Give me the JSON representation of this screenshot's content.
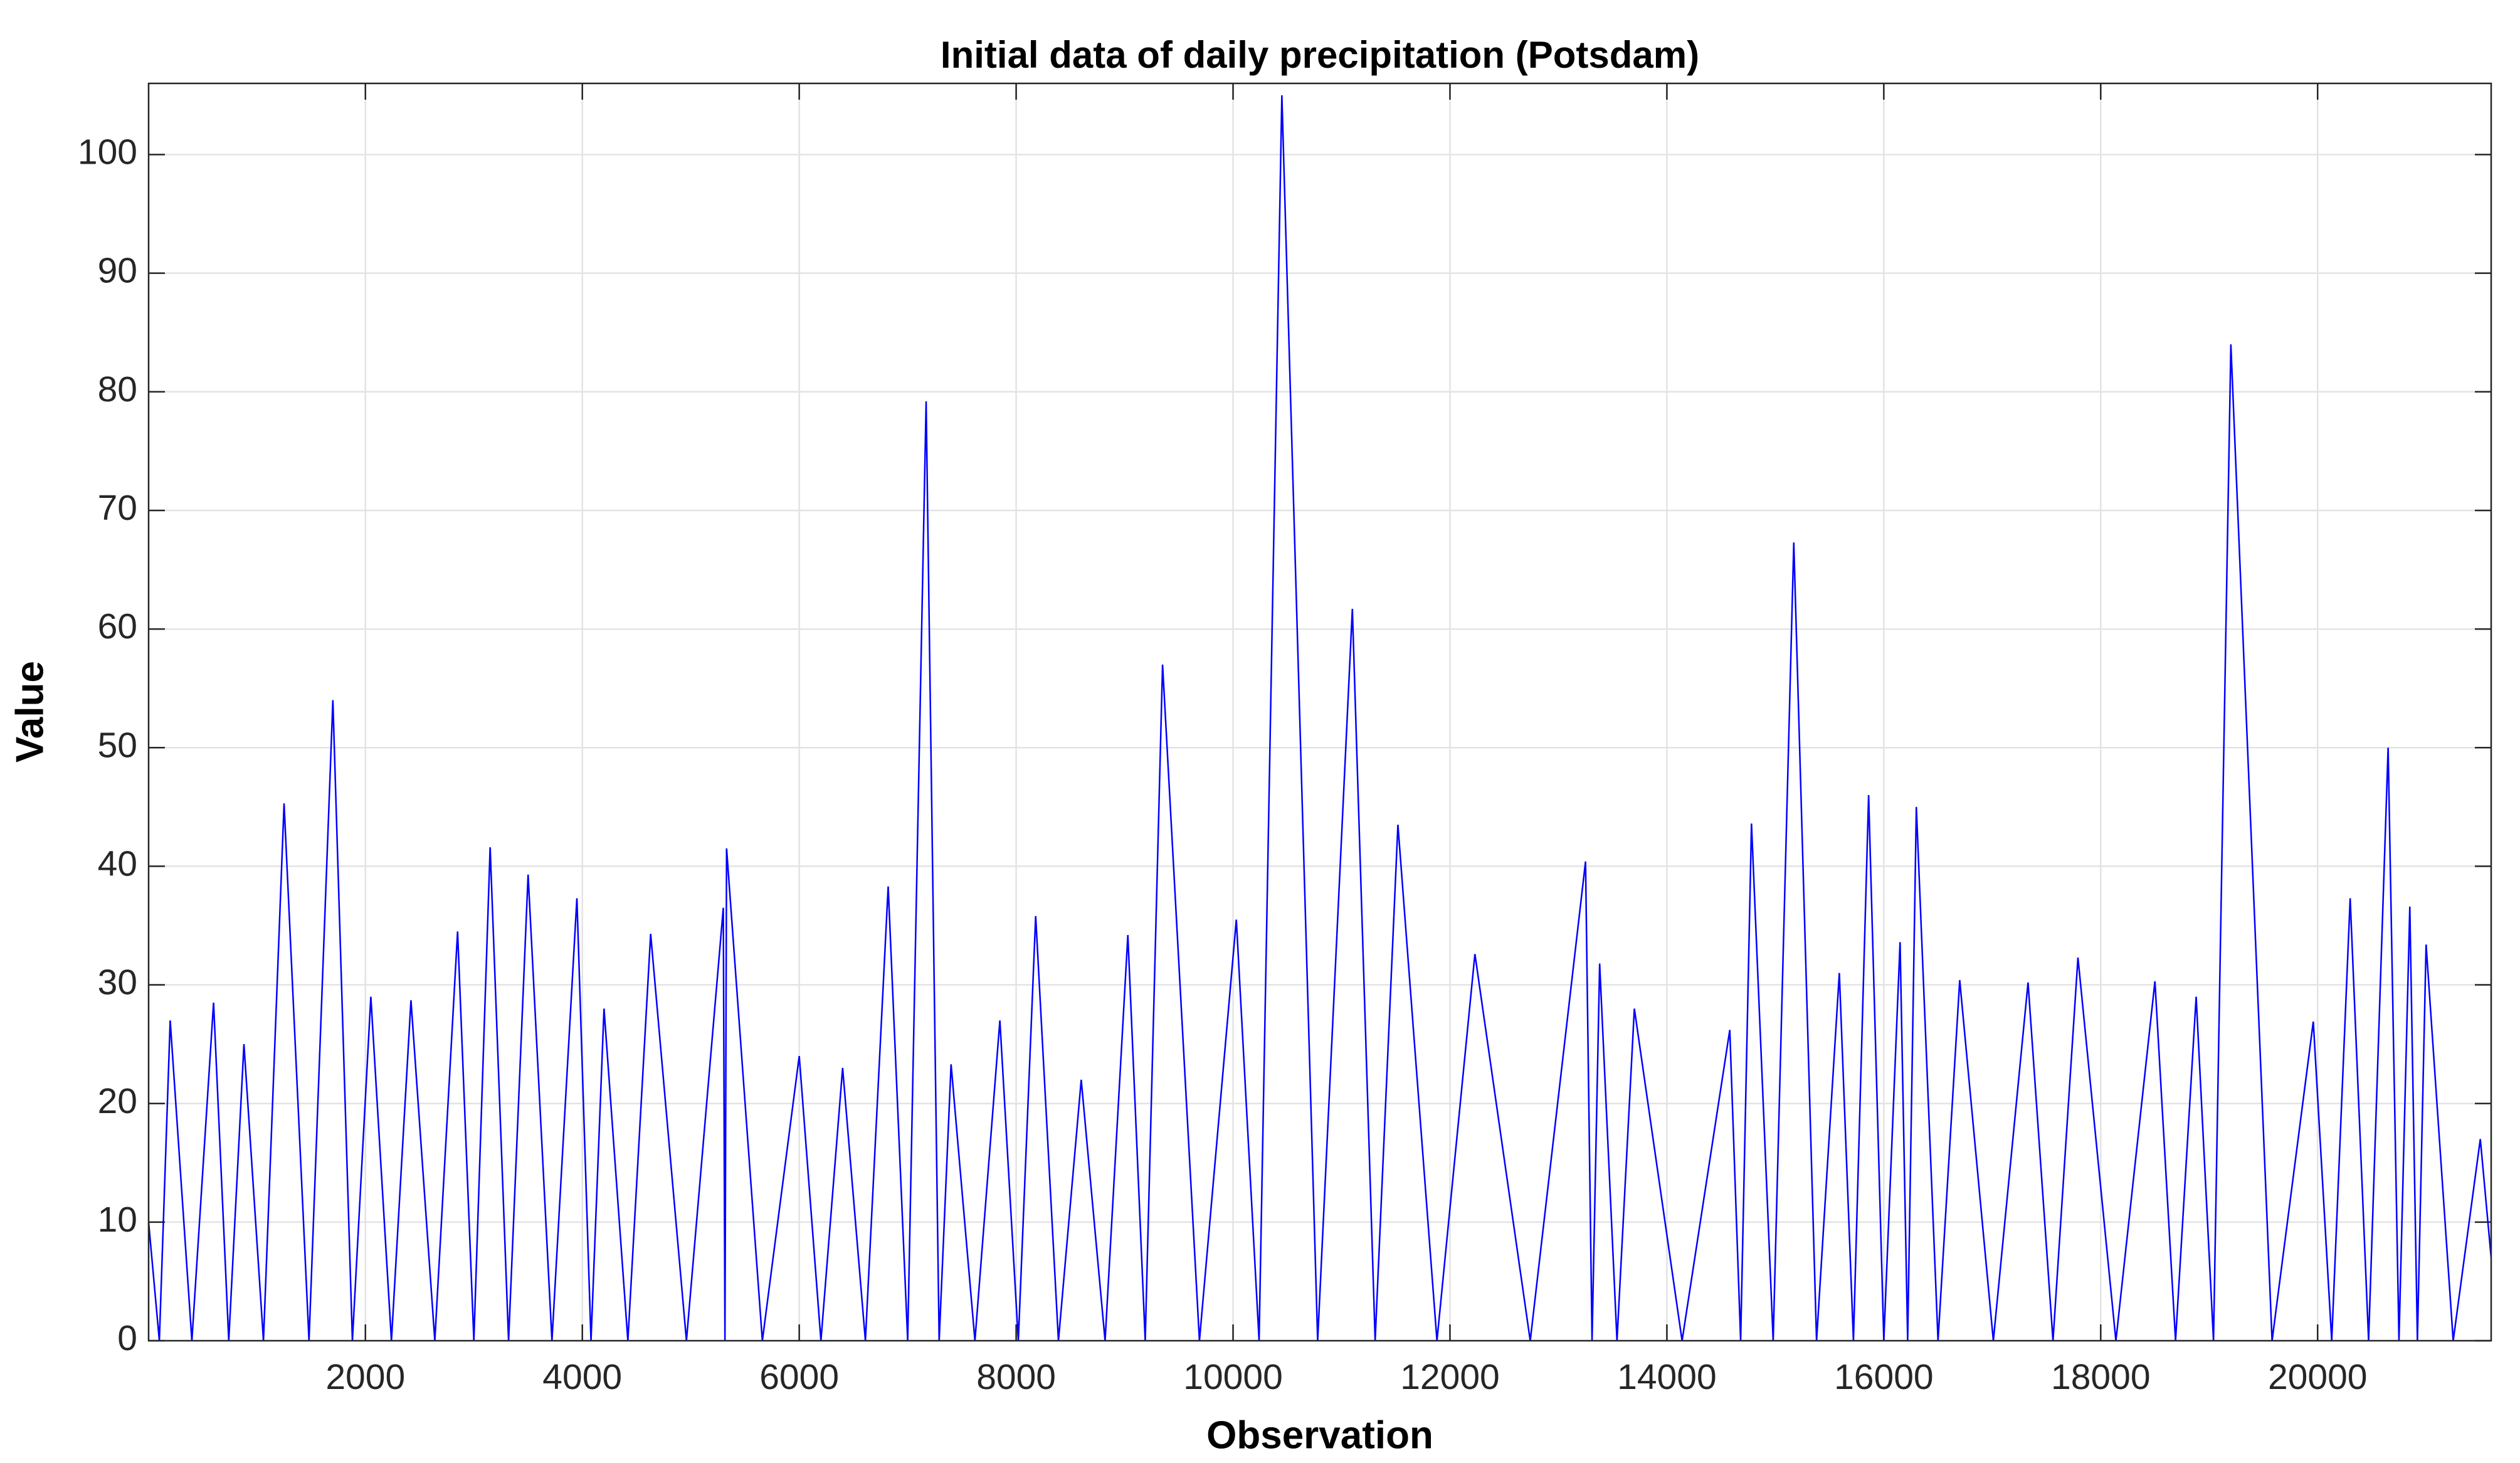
{
  "chart_data": {
    "type": "line",
    "title": "Initial data of daily precipitation (Potsdam)",
    "x_label": "Observation",
    "y_label": "Value",
    "series": [
      {
        "color": "#0000ff",
        "x": [
          1,
          100,
          200,
          400,
          600,
          740,
          880,
          1060,
          1250,
          1480,
          1700,
          1880,
          2050,
          2240,
          2420,
          2640,
          2850,
          3000,
          3150,
          3320,
          3500,
          3720,
          3950,
          4080,
          4200,
          4420,
          4630,
          4960,
          5300,
          5315,
          5330,
          5660,
          6000,
          6200,
          6400,
          6610,
          6820,
          7000,
          7170,
          7290,
          7400,
          7620,
          7850,
          8020,
          8180,
          8390,
          8600,
          8820,
          9030,
          9190,
          9350,
          9690,
          10030,
          10240,
          10450,
          10780,
          11100,
          11310,
          11520,
          11880,
          12230,
          12740,
          13250,
          13310,
          13380,
          13540,
          13700,
          14140,
          14580,
          14680,
          14780,
          14980,
          15170,
          15380,
          15590,
          15720,
          15860,
          16000,
          16150,
          16220,
          16300,
          16500,
          16700,
          17010,
          17330,
          17560,
          17790,
          18140,
          18500,
          18690,
          18880,
          19040,
          19200,
          19580,
          19960,
          20130,
          20300,
          20470,
          20650,
          20750,
          20850,
          20920,
          21000,
          21250,
          21500,
          21600
        ],
        "values": [
          10,
          0,
          27,
          0,
          28.5,
          0,
          25,
          0,
          45.3,
          0,
          54,
          0,
          29,
          0,
          28.7,
          0,
          34.5,
          0,
          41.6,
          0,
          39.3,
          0,
          37.3,
          0,
          28,
          0,
          34.3,
          0,
          36.5,
          0,
          41.5,
          0,
          24,
          0,
          23,
          0,
          38.3,
          0,
          79.2,
          0,
          23.3,
          0,
          27,
          0,
          35.8,
          0,
          22,
          0,
          34.2,
          0,
          57,
          0,
          35.5,
          0,
          105,
          0,
          61.7,
          0,
          43.5,
          0,
          32.6,
          0,
          40.4,
          0,
          31.8,
          0,
          28,
          0,
          26.2,
          0,
          43.6,
          0,
          67.3,
          0,
          31,
          0,
          46,
          0,
          33.6,
          0,
          45,
          0,
          30.4,
          0,
          30.2,
          0,
          32.3,
          0,
          30.3,
          0,
          29,
          0,
          84,
          0,
          26.9,
          0,
          37.3,
          0,
          50,
          0,
          36.6,
          0,
          33.4,
          0,
          17,
          7
        ]
      }
    ],
    "xlim": [
      1,
      21600
    ],
    "ylim": [
      0,
      106
    ],
    "xticks": [
      2000,
      4000,
      6000,
      8000,
      10000,
      12000,
      14000,
      16000,
      18000,
      20000
    ],
    "yticks": [
      0,
      10,
      20,
      30,
      40,
      50,
      60,
      70,
      80,
      90,
      100
    ],
    "grid": true
  }
}
